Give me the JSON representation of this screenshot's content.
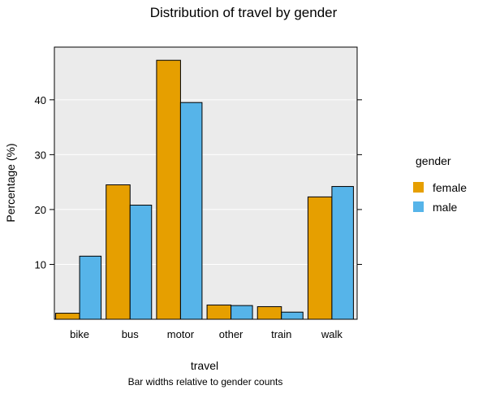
{
  "chart_data": {
    "type": "bar",
    "title": "Distribution of travel by gender",
    "xlabel": "travel",
    "ylabel": "Percentage (%)",
    "subtitle": "Bar widths relative to gender counts",
    "categories": [
      "bike",
      "bus",
      "motor",
      "other",
      "train",
      "walk"
    ],
    "series": [
      {
        "name": "female",
        "color": "#E69F00",
        "values": [
          1.1,
          24.5,
          47.2,
          2.6,
          2.3,
          22.3
        ]
      },
      {
        "name": "male",
        "color": "#56B4E9",
        "values": [
          11.5,
          20.8,
          39.5,
          2.5,
          1.3,
          24.2
        ]
      }
    ],
    "yticks": [
      "10",
      "20",
      "30",
      "40"
    ],
    "ylim": [
      0,
      49.6
    ],
    "grid": true,
    "legend": {
      "title": "gender",
      "position": "right"
    },
    "panel_background": "#EBEBEB"
  }
}
